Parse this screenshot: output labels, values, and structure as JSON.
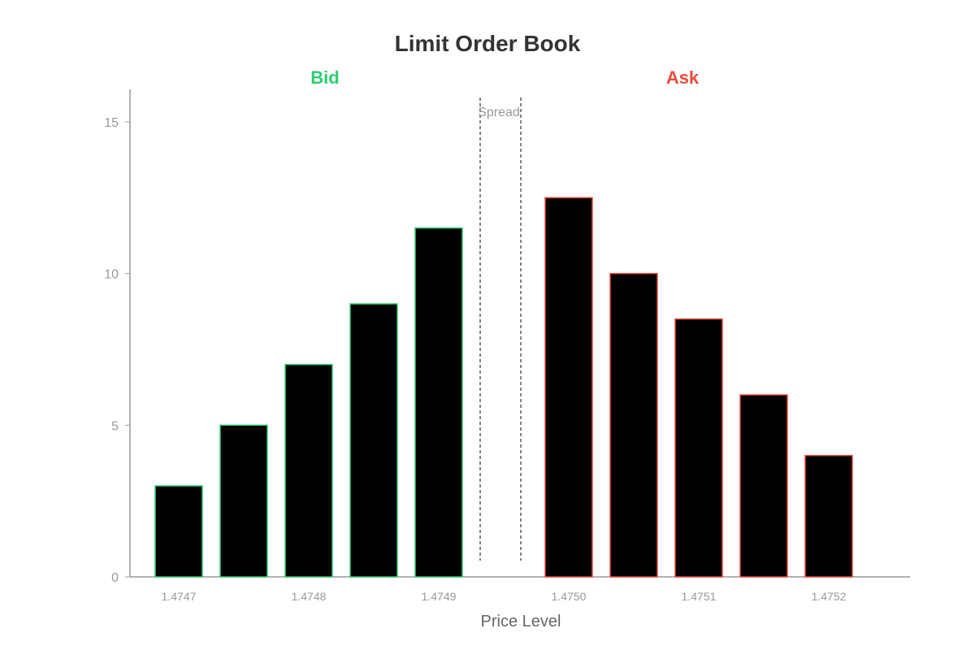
{
  "chart_data": {
    "type": "bar",
    "title": "Limit Order Book",
    "xlabel": "Price Level",
    "ylabel": "",
    "ylim": [
      0,
      16
    ],
    "yticks": [
      0,
      5,
      10,
      15
    ],
    "grid": false,
    "legend": "none",
    "bid_label": "Bid",
    "ask_label": "Ask",
    "spread_label": "Spread",
    "colors": {
      "bar_fill": "#000000",
      "bid": "#2ECC71",
      "ask": "#E74C3C",
      "axis": "#999999",
      "title": "#333333",
      "spread_line": "#333333"
    },
    "series": [
      {
        "side": "bid",
        "prices": [
          1.4747,
          1.47475,
          1.4748,
          1.47485,
          1.4749
        ],
        "values": [
          3,
          5,
          7,
          9,
          11.5
        ]
      },
      {
        "side": "ask",
        "prices": [
          1.475,
          1.47505,
          1.4751,
          1.47515,
          1.4752
        ],
        "values": [
          12.5,
          10,
          8.5,
          6,
          4
        ]
      }
    ],
    "spread": [
      1.47495,
      1.475
    ],
    "xticks": [
      "1.4747",
      "1.4748",
      "1.4749",
      "1.4750",
      "1.4751",
      "1.4752"
    ]
  }
}
